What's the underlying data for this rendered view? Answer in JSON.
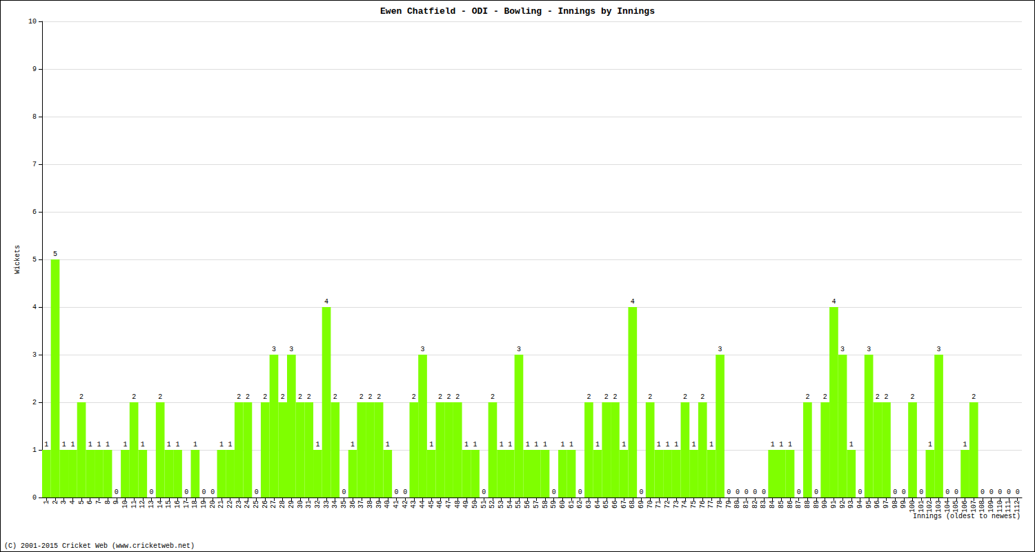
{
  "chart_data": {
    "type": "bar",
    "title": "Ewen Chatfield - ODI - Bowling - Innings by Innings",
    "x_label": "Innings (oldest to newest)",
    "y_label": "Wickets",
    "footer": "(C) 2001-2015 Cricket Web (www.cricketweb.net)",
    "categories": [
      "1",
      "2",
      "3",
      "4",
      "5",
      "6",
      "7",
      "8",
      "9",
      "10",
      "11",
      "12",
      "13",
      "14",
      "15",
      "16",
      "17",
      "18",
      "19",
      "20",
      "21",
      "22",
      "23",
      "24",
      "25",
      "26",
      "27",
      "28",
      "29",
      "30",
      "31",
      "32",
      "33",
      "34",
      "35",
      "36",
      "37",
      "38",
      "39",
      "40",
      "41",
      "42",
      "43",
      "44",
      "45",
      "46",
      "47",
      "48",
      "49",
      "50",
      "51",
      "52",
      "53",
      "54",
      "55",
      "56",
      "57",
      "58",
      "59",
      "60",
      "61",
      "62",
      "63",
      "64",
      "65",
      "66",
      "67",
      "68",
      "69",
      "70",
      "71",
      "72",
      "73",
      "74",
      "75",
      "76",
      "77",
      "78",
      "79",
      "80",
      "81",
      "82",
      "83",
      "84",
      "85",
      "86",
      "87",
      "88",
      "89",
      "90",
      "91",
      "92",
      "93",
      "94",
      "95",
      "96",
      "97",
      "98",
      "99",
      "100",
      "101",
      "102",
      "103",
      "104",
      "105",
      "106",
      "107",
      "108",
      "109",
      "110",
      "111",
      "112"
    ],
    "values": [
      1,
      5,
      1,
      1,
      2,
      1,
      1,
      1,
      0,
      1,
      2,
      1,
      0,
      2,
      1,
      1,
      0,
      1,
      0,
      0,
      1,
      1,
      2,
      2,
      0,
      2,
      3,
      2,
      3,
      2,
      2,
      1,
      4,
      2,
      0,
      1,
      2,
      2,
      2,
      1,
      0,
      0,
      2,
      3,
      1,
      2,
      2,
      2,
      1,
      1,
      0,
      2,
      1,
      1,
      3,
      1,
      1,
      1,
      0,
      1,
      1,
      0,
      2,
      1,
      2,
      2,
      1,
      4,
      0,
      2,
      1,
      1,
      1,
      2,
      1,
      2,
      1,
      3,
      0,
      0,
      0,
      0,
      0,
      1,
      1,
      1,
      0,
      2,
      0,
      2,
      4,
      3,
      1,
      0,
      3,
      2,
      2,
      0,
      0,
      2,
      0,
      1,
      3,
      0,
      0,
      1,
      2,
      0,
      0,
      0,
      0,
      0
    ],
    "color": "#7fff00",
    "ylim": [
      0,
      10
    ],
    "yticks": [
      0,
      1,
      2,
      3,
      4,
      5,
      6,
      7,
      8,
      9,
      10
    ],
    "grid": true,
    "data_labels": true
  }
}
